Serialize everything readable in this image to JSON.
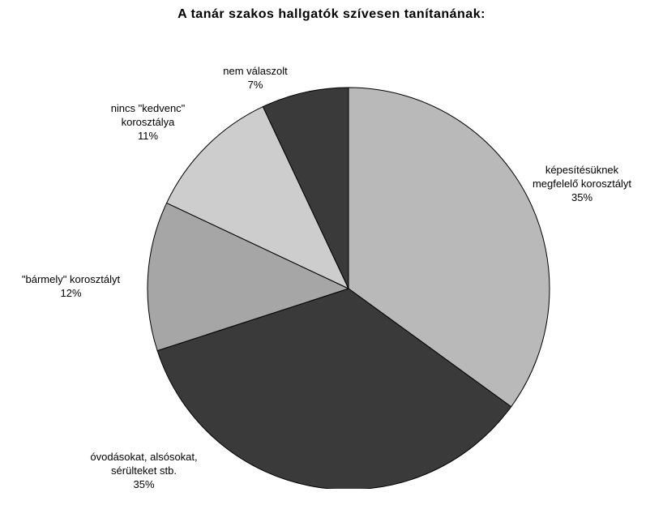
{
  "chart_data": {
    "type": "pie",
    "title": "A tanár szakos hallgatók szívesen tanítanának:",
    "slices": [
      {
        "label": "képesítésüknek\nmegfelelő korosztályt",
        "value": 35,
        "value_label": "35%",
        "color": "#b9b9b9"
      },
      {
        "label": "óvodásokat, alsósokat,\nsérülteket stb.",
        "value": 35,
        "value_label": "35%",
        "color": "#3a3a3a"
      },
      {
        "label": "\"bármely\" korosztályt",
        "value": 12,
        "value_label": "12%",
        "color": "#a6a6a6"
      },
      {
        "label": "nincs \"kedvenc\"\nkorosztálya",
        "value": 11,
        "value_label": "11%",
        "color": "#cdcdcd"
      },
      {
        "label": "nem válaszolt",
        "value": 7,
        "value_label": "7%",
        "color": "#3a3a3a"
      }
    ]
  }
}
